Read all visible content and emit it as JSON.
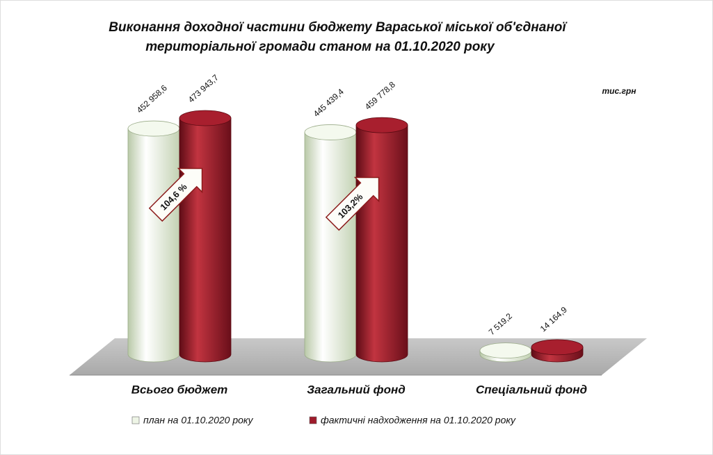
{
  "chart_data": {
    "type": "cylinder",
    "title": [
      "Виконання доходної частини бюджету Вараської міської об'єднаної",
      "територіальної громади станом на 01.10.2020 року"
    ],
    "unit": "тис.грн",
    "categories": [
      "Всього бюджет",
      "Загальний фонд",
      "Спеціальний фонд"
    ],
    "series": [
      {
        "name": "план на 01.10.2020 року",
        "color": "#eef5e6",
        "values": [
          452958.6,
          445439.4,
          7519.2
        ],
        "value_labels": [
          "452 958,6",
          "445 439,4",
          "7 519,2"
        ]
      },
      {
        "name": "фактичні надходження на 01.10.2020 року",
        "color": "#9e1b2b",
        "values": [
          473943.7,
          459778.8,
          14164.9
        ],
        "value_labels": [
          "473 943,7",
          "459 778,8",
          "14 164,9"
        ]
      }
    ],
    "annotations": [
      "104,6 %",
      "103,2%"
    ]
  }
}
